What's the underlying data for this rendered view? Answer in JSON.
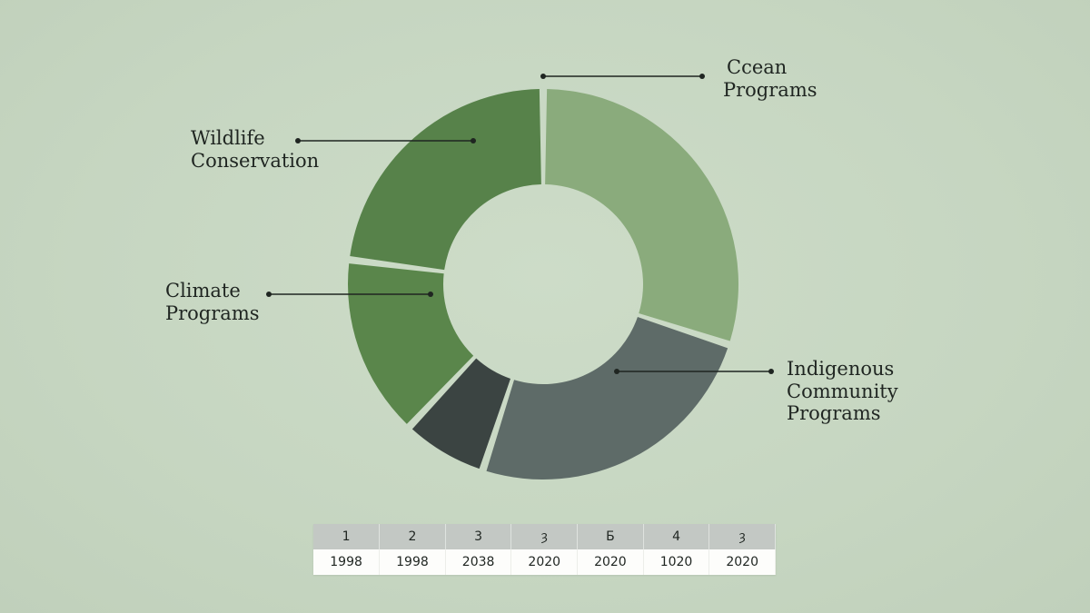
{
  "chart_data": {
    "type": "pie",
    "variant": "donut",
    "legend": "none",
    "slices": [
      {
        "label_lines": [
          "Ccean",
          "Programs"
        ],
        "value": 30,
        "color": "#8aab7c"
      },
      {
        "label_lines": [
          "Indigenous",
          "Community",
          "Programs"
        ],
        "value": 25,
        "color": "#5e6b68"
      },
      {
        "label_lines": [],
        "value": 7,
        "color": "#3b4442"
      },
      {
        "label_lines": [
          "Climate",
          "Programs"
        ],
        "value": 15,
        "color": "#5a864b"
      },
      {
        "label_lines": [
          "Wildlife",
          "Conservation"
        ],
        "value": 23,
        "color": "#57824a"
      }
    ],
    "table": {
      "header": [
        "1",
        "2",
        "3",
        "ȝ",
        "Б",
        "4",
        "ȝ"
      ],
      "row": [
        "1998",
        "1998",
        "2038",
        "2020",
        "2020",
        "1020",
        "2020"
      ]
    }
  }
}
